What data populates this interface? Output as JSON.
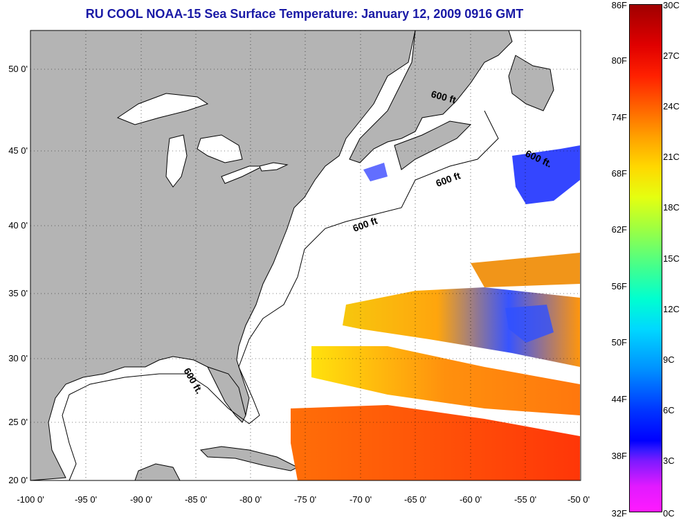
{
  "title": "RU COOL  NOAA-15  Sea Surface Temperature:  January 12, 2009 0916 GMT",
  "longitude_labels": [
    "-100 0'",
    "-95 0'",
    "-90 0'",
    "-85 0'",
    "-80 0'",
    "-75 0'",
    "-70 0'",
    "-65 0'",
    "-60 0'",
    "-55 0'",
    "-50 0'"
  ],
  "latitude_labels": [
    "50 0'",
    "45 0'",
    "40 0'",
    "35 0'",
    "30 0'",
    "25 0'",
    "20 0'"
  ],
  "contour_labels": [
    "600 ft.",
    "600 ft",
    "600 ft",
    "600 ft",
    "600 ft."
  ],
  "colorbar": {
    "fahrenheit": [
      "86F",
      "80F",
      "74F",
      "68F",
      "62F",
      "56F",
      "50F",
      "44F",
      "38F",
      "32F"
    ],
    "celsius": [
      "30C",
      "27C",
      "24C",
      "21C",
      "18C",
      "15C",
      "12C",
      "9C",
      "6C",
      "3C",
      "0C"
    ]
  },
  "colors": {
    "land": "#b4b4b4",
    "water": "#ffffff",
    "title": "#1a1aa6"
  }
}
